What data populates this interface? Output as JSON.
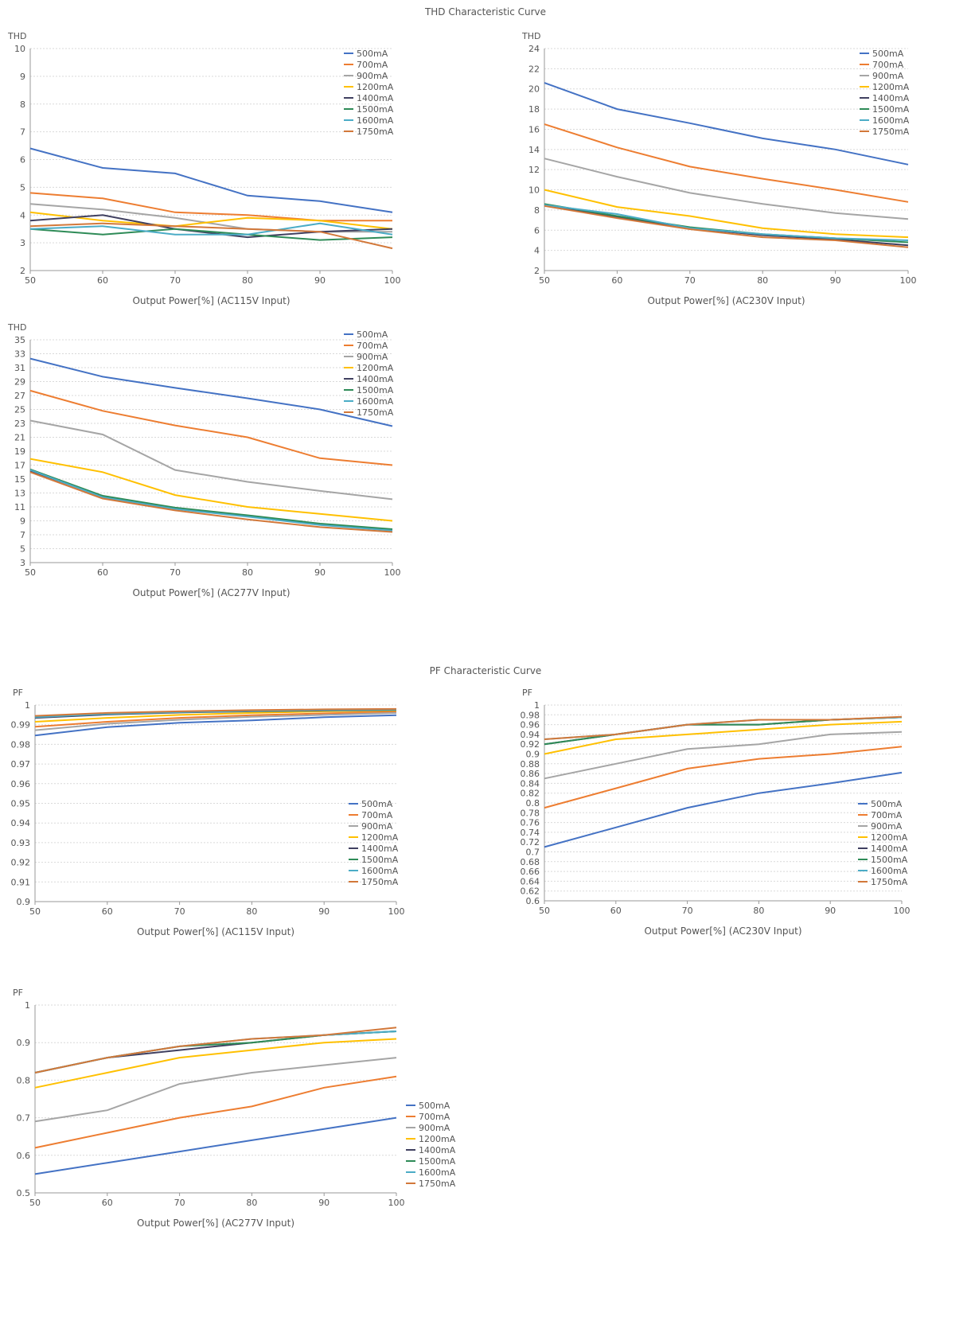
{
  "thd_section_title": "THD Characteristic Curve",
  "pf_section_title": "PF Characteristic Curve",
  "colors": {
    "500mA": "#4472C4",
    "700mA": "#ED7D31",
    "900mA": "#A5A5A5",
    "1200mA": "#FFC000",
    "1400mA": "#404060",
    "1500mA": "#2E8B57",
    "1600mA": "#4BACC6",
    "1750mA": "#D2783A"
  },
  "chart_data": [
    {
      "id": "thd-115",
      "type": "line",
      "title": "",
      "ylabel": "THD",
      "xlabel": "Output Power[%] (AC115V Input)",
      "x": [
        50,
        60,
        70,
        80,
        90,
        100
      ],
      "xlim": [
        50,
        100
      ],
      "ylim": [
        2,
        10
      ],
      "yticks": [
        2,
        3,
        4,
        5,
        6,
        7,
        8,
        9,
        10
      ],
      "ytick_labels": [
        "2",
        "3",
        "4",
        "5",
        "6",
        "7",
        "8",
        "9",
        "10"
      ],
      "grid": true,
      "legend": "top-right",
      "series": [
        {
          "name": "500mA",
          "values": [
            6.4,
            5.7,
            5.5,
            4.7,
            4.5,
            4.1
          ]
        },
        {
          "name": "700mA",
          "values": [
            4.8,
            4.6,
            4.1,
            4.0,
            3.8,
            3.8
          ]
        },
        {
          "name": "900mA",
          "values": [
            4.4,
            4.2,
            3.9,
            3.5,
            3.4,
            3.4
          ]
        },
        {
          "name": "1200mA",
          "values": [
            4.1,
            3.8,
            3.6,
            3.9,
            3.8,
            3.5
          ]
        },
        {
          "name": "1400mA",
          "values": [
            3.8,
            4.0,
            3.5,
            3.2,
            3.4,
            3.5
          ]
        },
        {
          "name": "1500mA",
          "values": [
            3.5,
            3.3,
            3.5,
            3.3,
            3.1,
            3.2
          ]
        },
        {
          "name": "1600mA",
          "values": [
            3.5,
            3.6,
            3.3,
            3.3,
            3.7,
            3.3
          ]
        },
        {
          "name": "1750mA",
          "values": [
            3.6,
            3.7,
            3.6,
            3.5,
            3.4,
            2.8
          ]
        }
      ]
    },
    {
      "id": "thd-230",
      "type": "line",
      "title": "",
      "ylabel": "THD",
      "xlabel": "Output Power[%] (AC230V Input)",
      "x": [
        50,
        60,
        70,
        80,
        90,
        100
      ],
      "xlim": [
        50,
        100
      ],
      "ylim": [
        2,
        24
      ],
      "yticks": [
        2,
        4,
        6,
        8,
        10,
        12,
        14,
        16,
        18,
        20,
        22,
        24
      ],
      "ytick_labels": [
        "2",
        "4",
        "6",
        "8",
        "10",
        "12",
        "14",
        "16",
        "18",
        "20",
        "22",
        "24"
      ],
      "grid": true,
      "legend": "top-right",
      "series": [
        {
          "name": "500mA",
          "values": [
            20.6,
            18.0,
            16.6,
            15.1,
            14.0,
            12.5
          ]
        },
        {
          "name": "700mA",
          "values": [
            16.5,
            14.2,
            12.3,
            11.1,
            10.0,
            8.8
          ]
        },
        {
          "name": "900mA",
          "values": [
            13.1,
            11.3,
            9.7,
            8.6,
            7.7,
            7.1
          ]
        },
        {
          "name": "1200mA",
          "values": [
            10.0,
            8.3,
            7.4,
            6.2,
            5.6,
            5.3
          ]
        },
        {
          "name": "1400mA",
          "values": [
            8.5,
            7.3,
            6.2,
            5.5,
            5.1,
            4.5
          ]
        },
        {
          "name": "1500mA",
          "values": [
            8.6,
            7.4,
            6.3,
            5.6,
            5.2,
            4.8
          ]
        },
        {
          "name": "1600mA",
          "values": [
            8.5,
            7.6,
            6.2,
            5.6,
            5.2,
            5.0
          ]
        },
        {
          "name": "1750mA",
          "values": [
            8.4,
            7.2,
            6.1,
            5.3,
            5.0,
            4.3
          ]
        }
      ]
    },
    {
      "id": "thd-277",
      "type": "line",
      "title": "",
      "ylabel": "THD",
      "xlabel": "Output Power[%] (AC277V Input)",
      "x": [
        50,
        60,
        70,
        80,
        90,
        100
      ],
      "xlim": [
        50,
        100
      ],
      "ylim": [
        3,
        35
      ],
      "yticks": [
        3,
        5,
        7,
        9,
        11,
        13,
        15,
        17,
        19,
        21,
        23,
        25,
        27,
        29,
        31,
        33,
        35
      ],
      "ytick_labels": [
        "3",
        "5",
        "7",
        "9",
        "11",
        "13",
        "15",
        "17",
        "19",
        "21",
        "23",
        "25",
        "27",
        "29",
        "31",
        "33",
        "35"
      ],
      "grid": true,
      "legend": "top-right",
      "series": [
        {
          "name": "500mA",
          "values": [
            32.3,
            29.7,
            28.1,
            26.6,
            25.0,
            22.6
          ]
        },
        {
          "name": "700mA",
          "values": [
            27.7,
            24.8,
            22.7,
            21.0,
            18.0,
            17.0
          ]
        },
        {
          "name": "900mA",
          "values": [
            23.4,
            21.4,
            16.3,
            14.6,
            13.3,
            12.1
          ]
        },
        {
          "name": "1200mA",
          "values": [
            17.9,
            16.0,
            12.7,
            11.0,
            10.0,
            9.0
          ]
        },
        {
          "name": "1400mA",
          "values": [
            16.2,
            12.5,
            10.8,
            9.7,
            8.5,
            7.7
          ]
        },
        {
          "name": "1500mA",
          "values": [
            16.4,
            12.6,
            10.9,
            9.8,
            8.6,
            7.8
          ]
        },
        {
          "name": "1600mA",
          "values": [
            16.3,
            12.4,
            10.7,
            9.6,
            8.4,
            7.6
          ]
        },
        {
          "name": "1750mA",
          "values": [
            16.0,
            12.2,
            10.5,
            9.2,
            8.1,
            7.4
          ]
        }
      ]
    },
    {
      "id": "pf-115",
      "type": "line",
      "title": "",
      "ylabel": "PF",
      "xlabel": "Output Power[%] (AC115V Input)",
      "x": [
        50,
        60,
        70,
        80,
        90,
        100
      ],
      "xlim": [
        50,
        100
      ],
      "ylim": [
        0.9,
        1.0
      ],
      "yticks": [
        0.9,
        0.91,
        0.92,
        0.93,
        0.94,
        0.95,
        0.96,
        0.97,
        0.98,
        0.99,
        1.0
      ],
      "ytick_labels": [
        "0.9",
        "0.91",
        "0.92",
        "0.93",
        "0.94",
        "0.95",
        "0.96",
        "0.97",
        "0.98",
        "0.99",
        "1"
      ],
      "grid": true,
      "legend": "bottom-right",
      "series": [
        {
          "name": "500mA",
          "values": [
            0.9845,
            0.9888,
            0.991,
            0.9922,
            0.9938,
            0.9948
          ]
        },
        {
          "name": "700mA",
          "values": [
            0.989,
            0.9915,
            0.9935,
            0.9948,
            0.9958,
            0.9965
          ]
        },
        {
          "name": "900mA",
          "values": [
            0.9872,
            0.9905,
            0.9925,
            0.994,
            0.995,
            0.996
          ]
        },
        {
          "name": "1200mA",
          "values": [
            0.9915,
            0.9935,
            0.995,
            0.996,
            0.9968,
            0.9972
          ]
        },
        {
          "name": "1400mA",
          "values": [
            0.9935,
            0.9952,
            0.9962,
            0.9968,
            0.9972,
            0.9975
          ]
        },
        {
          "name": "1500mA",
          "values": [
            0.994,
            0.9956,
            0.9965,
            0.997,
            0.9974,
            0.9977
          ]
        },
        {
          "name": "1600mA",
          "values": [
            0.9938,
            0.9955,
            0.9964,
            0.997,
            0.9974,
            0.9977
          ]
        },
        {
          "name": "1750mA",
          "values": [
            0.9945,
            0.996,
            0.9968,
            0.9974,
            0.9978,
            0.998
          ]
        }
      ]
    },
    {
      "id": "pf-230",
      "type": "line",
      "title": "",
      "ylabel": "PF",
      "xlabel": "Output Power[%] (AC230V Input)",
      "x": [
        50,
        60,
        70,
        80,
        90,
        100
      ],
      "xlim": [
        50,
        100
      ],
      "ylim": [
        0.6,
        1.0
      ],
      "yticks": [
        0.6,
        0.62,
        0.64,
        0.66,
        0.68,
        0.7,
        0.72,
        0.74,
        0.76,
        0.78,
        0.8,
        0.82,
        0.84,
        0.86,
        0.88,
        0.9,
        0.92,
        0.94,
        0.96,
        0.98,
        1.0
      ],
      "ytick_labels": [
        "0.6",
        "0.62",
        "0.64",
        "0.66",
        "0.68",
        "0.7",
        "0.72",
        "0.74",
        "0.76",
        "0.78",
        "0.8",
        "0.82",
        "0.84",
        "0.86",
        "0.88",
        "0.9",
        "0.92",
        "0.94",
        "0.96",
        "0.98",
        "1"
      ],
      "grid": true,
      "legend": "bottom-right",
      "series": [
        {
          "name": "500mA",
          "values": [
            0.71,
            0.75,
            0.79,
            0.82,
            0.84,
            0.862
          ]
        },
        {
          "name": "700mA",
          "values": [
            0.79,
            0.83,
            0.87,
            0.89,
            0.9,
            0.915
          ]
        },
        {
          "name": "900mA",
          "values": [
            0.85,
            0.88,
            0.91,
            0.92,
            0.94,
            0.945
          ]
        },
        {
          "name": "1200mA",
          "values": [
            0.9,
            0.93,
            0.94,
            0.95,
            0.96,
            0.966
          ]
        },
        {
          "name": "1400mA",
          "values": [
            0.92,
            0.94,
            0.96,
            0.96,
            0.97,
            0.975
          ]
        },
        {
          "name": "1500mA",
          "values": [
            0.92,
            0.94,
            0.96,
            0.96,
            0.97,
            0.975
          ]
        },
        {
          "name": "1600mA",
          "values": [
            0.93,
            0.94,
            0.96,
            0.97,
            0.97,
            0.975
          ]
        },
        {
          "name": "1750mA",
          "values": [
            0.93,
            0.94,
            0.96,
            0.97,
            0.97,
            0.976
          ]
        }
      ]
    },
    {
      "id": "pf-277",
      "type": "line",
      "title": "",
      "ylabel": "PF",
      "xlabel": "Output Power[%] (AC277V Input)",
      "x": [
        50,
        60,
        70,
        80,
        90,
        100
      ],
      "xlim": [
        50,
        100
      ],
      "ylim": [
        0.5,
        1.0
      ],
      "yticks": [
        0.5,
        0.6,
        0.7,
        0.8,
        0.9,
        1.0
      ],
      "ytick_labels": [
        "0.5",
        "0.6",
        "0.7",
        "0.8",
        "0.9",
        "1"
      ],
      "grid": true,
      "legend": "right",
      "series": [
        {
          "name": "500mA",
          "values": [
            0.55,
            0.58,
            0.61,
            0.64,
            0.67,
            0.7
          ]
        },
        {
          "name": "700mA",
          "values": [
            0.62,
            0.66,
            0.7,
            0.73,
            0.78,
            0.81
          ]
        },
        {
          "name": "900mA",
          "values": [
            0.69,
            0.72,
            0.79,
            0.82,
            0.84,
            0.86
          ]
        },
        {
          "name": "1200mA",
          "values": [
            0.78,
            0.82,
            0.86,
            0.88,
            0.9,
            0.91
          ]
        },
        {
          "name": "1400mA",
          "values": [
            0.82,
            0.86,
            0.88,
            0.9,
            0.92,
            0.93
          ]
        },
        {
          "name": "1500mA",
          "values": [
            0.82,
            0.86,
            0.89,
            0.9,
            0.92,
            0.93
          ]
        },
        {
          "name": "1600mA",
          "values": [
            0.82,
            0.86,
            0.89,
            0.91,
            0.92,
            0.93
          ]
        },
        {
          "name": "1750mA",
          "values": [
            0.82,
            0.86,
            0.89,
            0.91,
            0.92,
            0.94
          ]
        }
      ]
    }
  ]
}
